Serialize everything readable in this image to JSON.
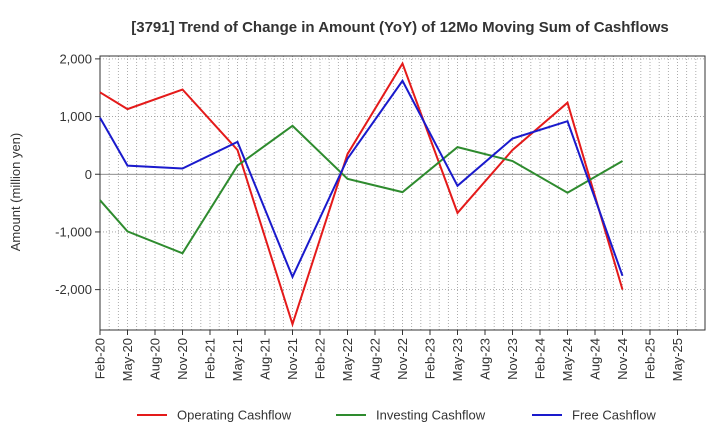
{
  "chart_data": {
    "type": "line",
    "title": "[3791]  Trend of Change in Amount (YoY) of 12Mo Moving Sum of Cashflows",
    "xlabel": "",
    "ylabel": "Amount (million yen)",
    "ylim": [
      -2700,
      2050
    ],
    "yticks": [
      2000,
      1000,
      0,
      -1000,
      -2000
    ],
    "ytick_labels": [
      "2,000",
      "1,000",
      "0",
      "-1,000",
      "-2,000"
    ],
    "categories": [
      "Feb-20",
      "May-20",
      "Aug-20",
      "Nov-20",
      "Feb-21",
      "May-21",
      "Aug-21",
      "Nov-21",
      "Feb-22",
      "May-22",
      "Aug-22",
      "Nov-22",
      "Feb-23",
      "May-23",
      "Aug-23",
      "Nov-23",
      "Feb-24",
      "May-24",
      "Aug-24",
      "Nov-24",
      "Feb-25",
      "May-25"
    ],
    "grid": true,
    "legend_position": "bottom",
    "series": [
      {
        "name": "Operating Cashflow",
        "color": "#e41a1a",
        "values": [
          1420,
          1130,
          null,
          1470,
          null,
          420,
          null,
          -2600,
          null,
          350,
          null,
          1920,
          null,
          -670,
          null,
          420,
          null,
          1240,
          null,
          -2000,
          null,
          null
        ]
      },
      {
        "name": "Investing Cashflow",
        "color": "#2e8b2e",
        "values": [
          -450,
          -990,
          null,
          -1370,
          null,
          150,
          null,
          840,
          null,
          -80,
          null,
          -310,
          null,
          470,
          null,
          230,
          null,
          -320,
          null,
          230,
          null,
          null
        ]
      },
      {
        "name": "Free Cashflow",
        "color": "#1a1acc",
        "values": [
          980,
          150,
          null,
          100,
          null,
          560,
          null,
          -1780,
          null,
          270,
          null,
          1620,
          null,
          -200,
          null,
          620,
          null,
          920,
          null,
          -1760,
          null,
          null
        ]
      }
    ]
  }
}
